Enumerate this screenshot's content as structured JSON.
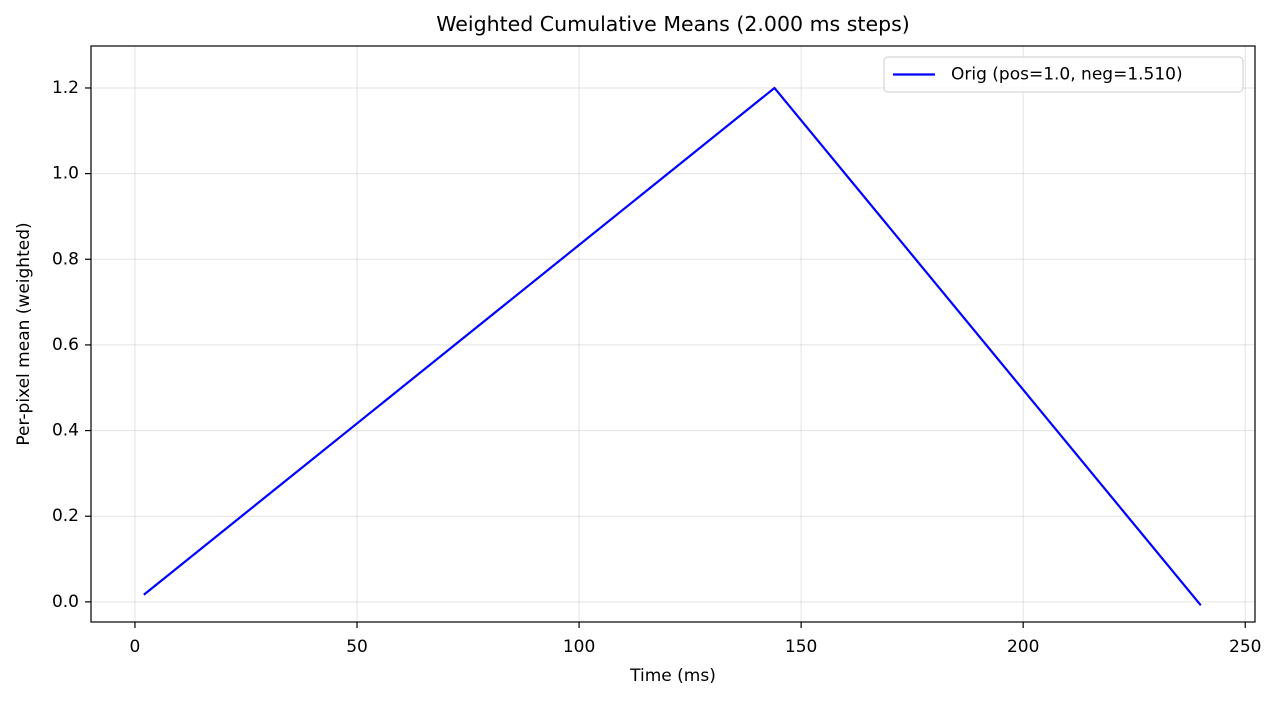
{
  "chart_data": {
    "type": "line",
    "title": "Weighted Cumulative Means (2.000 ms steps)",
    "x_label": "Time (ms)",
    "y_label": "Per-pixel mean (weighted)",
    "x": [
      2,
      144,
      240
    ],
    "series": [
      {
        "name": "Orig (pos=1.0, neg=1.510)",
        "color": "#0000ff",
        "values": [
          0.0167,
          1.2,
          -0.008
        ]
      }
    ],
    "xlim": [
      -9.9,
      252.2
    ],
    "ylim": [
      -0.047,
      1.298
    ],
    "xticks": [
      0,
      50,
      100,
      150,
      200,
      250
    ],
    "yticks": [
      {
        "value": 0,
        "label": "0.0"
      },
      {
        "value": 0.2,
        "label": "0.2"
      },
      {
        "value": 0.4,
        "label": "0.4"
      },
      {
        "value": 0.6,
        "label": "0.6"
      },
      {
        "value": 0.8,
        "label": "0.8"
      },
      {
        "value": 1.0,
        "label": "1.0"
      },
      {
        "value": 1.2,
        "label": "1.2"
      }
    ],
    "grid": true,
    "legend_position": "upper-right"
  }
}
